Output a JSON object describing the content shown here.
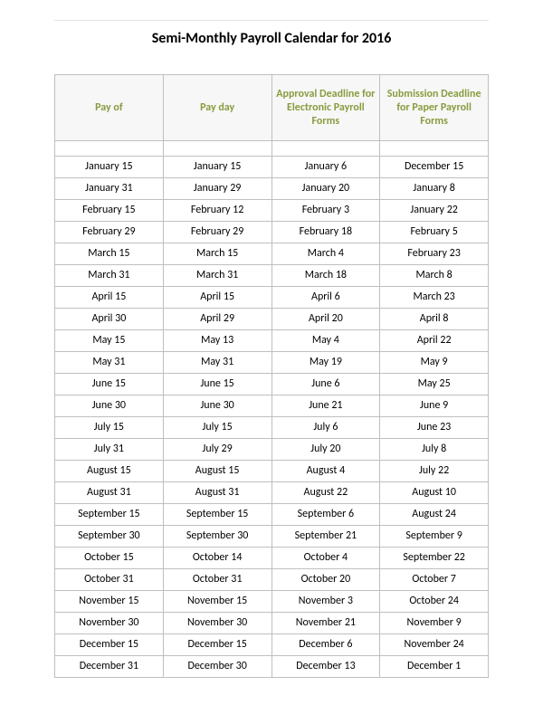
{
  "title": "Semi-Monthly Payroll Calendar for 2016",
  "table": {
    "type": "table",
    "header_color": "#889c3f",
    "header_bg": "#f7f7f7",
    "border_color": "#bfbfbf",
    "cell_bg": "#ffffff",
    "text_color": "#000000",
    "font_size_header": 12,
    "font_size_cell": 12,
    "columns": [
      "Pay of",
      "Pay day",
      "Approval Deadline for Electronic Payroll Forms",
      "Submission Deadline for Paper Payroll Forms"
    ],
    "rows": [
      [
        "January 15",
        "January 15",
        "January 6",
        "December 15"
      ],
      [
        "January 31",
        "January 29",
        "January 20",
        "January 8"
      ],
      [
        "February 15",
        "February 12",
        "February 3",
        "January 22"
      ],
      [
        "February 29",
        "February 29",
        "February 18",
        "February 5"
      ],
      [
        "March 15",
        "March 15",
        "March 4",
        "February 23"
      ],
      [
        "March 31",
        "March 31",
        "March 18",
        "March 8"
      ],
      [
        "April 15",
        "April 15",
        "April 6",
        "March 23"
      ],
      [
        "April 30",
        "April 29",
        "April 20",
        "April 8"
      ],
      [
        "May 15",
        "May 13",
        "May 4",
        "April 22"
      ],
      [
        "May 31",
        "May 31",
        "May 19",
        "May 9"
      ],
      [
        "June 15",
        "June 15",
        "June 6",
        "May 25"
      ],
      [
        "June 30",
        "June 30",
        "June 21",
        "June 9"
      ],
      [
        "July 15",
        "July 15",
        "July 6",
        "June 23"
      ],
      [
        "July 31",
        "July 29",
        "July 20",
        "July 8"
      ],
      [
        "August 15",
        "August 15",
        "August 4",
        "July 22"
      ],
      [
        "August 31",
        "August 31",
        "August 22",
        "August 10"
      ],
      [
        "September 15",
        "September 15",
        "September 6",
        "August 24"
      ],
      [
        "September 30",
        "September 30",
        "September 21",
        "September 9"
      ],
      [
        "October 15",
        "October 14",
        "October 4",
        "September 22"
      ],
      [
        "October 31",
        "October 31",
        "October 20",
        "October 7"
      ],
      [
        "November 15",
        "November 15",
        "November 3",
        "October 24"
      ],
      [
        "November 30",
        "November 30",
        "November 21",
        "November 9"
      ],
      [
        "December 15",
        "December 15",
        "December 6",
        "November 24"
      ],
      [
        "December 31",
        "December 30",
        "December 13",
        "December 1"
      ]
    ]
  }
}
